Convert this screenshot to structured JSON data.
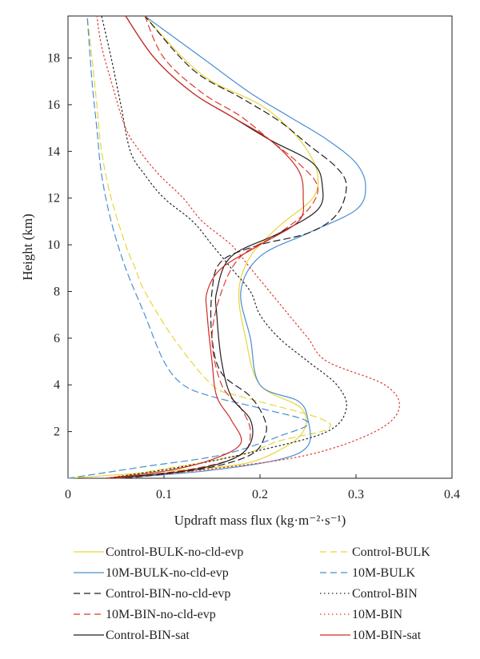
{
  "chart_data": {
    "type": "line",
    "orientation": "profile (x = flux, y = height)",
    "xlabel": "Updraft mass flux (kg·m⁻²·s⁻¹)",
    "ylabel": "Height (km)",
    "xlim": [
      0,
      0.4
    ],
    "ylim": [
      0,
      19.8
    ],
    "xticks": [
      "0",
      "0.1",
      "0.2",
      "0.3",
      "0.4"
    ],
    "yticks": [
      "2",
      "4",
      "6",
      "8",
      "10",
      "12",
      "14",
      "16",
      "18"
    ],
    "legend_position": "bottom",
    "grid": false,
    "series": [
      {
        "name": "Control-BULK-no-cld-evp",
        "color": "#e8d63a",
        "dash": "solid",
        "points": [
          [
            0,
            0
          ],
          [
            0.1,
            0.3
          ],
          [
            0.18,
            0.6
          ],
          [
            0.22,
            1.2
          ],
          [
            0.245,
            2
          ],
          [
            0.243,
            3
          ],
          [
            0.2,
            4
          ],
          [
            0.185,
            6
          ],
          [
            0.178,
            8
          ],
          [
            0.19,
            9.5
          ],
          [
            0.22,
            10.8
          ],
          [
            0.255,
            12
          ],
          [
            0.26,
            13
          ],
          [
            0.25,
            14
          ],
          [
            0.23,
            15
          ],
          [
            0.2,
            16
          ],
          [
            0.15,
            17
          ],
          [
            0.12,
            18
          ],
          [
            0.08,
            19.8
          ]
        ]
      },
      {
        "name": "Control-BULK",
        "color": "#e8d63a",
        "dash": "dashed",
        "points": [
          [
            0.04,
            0
          ],
          [
            0.1,
            0.4
          ],
          [
            0.18,
            1
          ],
          [
            0.22,
            1.6
          ],
          [
            0.27,
            2.1
          ],
          [
            0.26,
            2.6
          ],
          [
            0.18,
            3.5
          ],
          [
            0.15,
            4
          ],
          [
            0.11,
            6
          ],
          [
            0.08,
            8
          ],
          [
            0.07,
            9
          ],
          [
            0.06,
            10
          ],
          [
            0.045,
            12
          ],
          [
            0.035,
            14
          ],
          [
            0.03,
            16
          ],
          [
            0.025,
            18
          ],
          [
            0.02,
            19.8
          ]
        ]
      },
      {
        "name": "10M-BULK-no-cld-evp",
        "color": "#4a8ed2",
        "dash": "solid",
        "points": [
          [
            0.05,
            0
          ],
          [
            0.14,
            0.3
          ],
          [
            0.22,
            0.8
          ],
          [
            0.25,
            1.4
          ],
          [
            0.25,
            2.5
          ],
          [
            0.24,
            3.3
          ],
          [
            0.2,
            4
          ],
          [
            0.19,
            6
          ],
          [
            0.18,
            8
          ],
          [
            0.2,
            9.5
          ],
          [
            0.25,
            10.5
          ],
          [
            0.3,
            11.5
          ],
          [
            0.31,
            12.5
          ],
          [
            0.3,
            13.5
          ],
          [
            0.27,
            14.5
          ],
          [
            0.23,
            15.5
          ],
          [
            0.19,
            16.5
          ],
          [
            0.14,
            18
          ],
          [
            0.08,
            19.8
          ]
        ]
      },
      {
        "name": "10M-BULK",
        "color": "#4a8ed2",
        "dash": "dashed",
        "points": [
          [
            0,
            0
          ],
          [
            0.08,
            0.5
          ],
          [
            0.16,
            1
          ],
          [
            0.22,
            1.8
          ],
          [
            0.25,
            2.4
          ],
          [
            0.2,
            3
          ],
          [
            0.15,
            3.5
          ],
          [
            0.12,
            4
          ],
          [
            0.1,
            5
          ],
          [
            0.08,
            7
          ],
          [
            0.06,
            9
          ],
          [
            0.045,
            11
          ],
          [
            0.035,
            13
          ],
          [
            0.03,
            15
          ],
          [
            0.025,
            17
          ],
          [
            0.02,
            19.8
          ]
        ]
      },
      {
        "name": "Control-BIN-no-cld-evp",
        "color": "#231f20",
        "dash": "dashed",
        "points": [
          [
            0.06,
            0
          ],
          [
            0.14,
            0.4
          ],
          [
            0.19,
            1
          ],
          [
            0.205,
            1.8
          ],
          [
            0.205,
            2.5
          ],
          [
            0.19,
            3.5
          ],
          [
            0.16,
            4.5
          ],
          [
            0.15,
            6
          ],
          [
            0.15,
            8
          ],
          [
            0.16,
            9.3
          ],
          [
            0.2,
            10
          ],
          [
            0.25,
            10.5
          ],
          [
            0.28,
            11.3
          ],
          [
            0.29,
            12.5
          ],
          [
            0.28,
            13.3
          ],
          [
            0.25,
            14.3
          ],
          [
            0.22,
            15.3
          ],
          [
            0.18,
            16.3
          ],
          [
            0.13,
            17.5
          ],
          [
            0.08,
            19.8
          ]
        ]
      },
      {
        "name": "Control-BIN",
        "color": "#231f20",
        "dash": "dotted",
        "points": [
          [
            0.04,
            0
          ],
          [
            0.12,
            0.5
          ],
          [
            0.2,
            1.2
          ],
          [
            0.27,
            2
          ],
          [
            0.29,
            3
          ],
          [
            0.28,
            4
          ],
          [
            0.25,
            5
          ],
          [
            0.22,
            6
          ],
          [
            0.2,
            7
          ],
          [
            0.19,
            8
          ],
          [
            0.17,
            9
          ],
          [
            0.15,
            10
          ],
          [
            0.13,
            11
          ],
          [
            0.1,
            12
          ],
          [
            0.08,
            13
          ],
          [
            0.065,
            14
          ],
          [
            0.055,
            16
          ],
          [
            0.045,
            18
          ],
          [
            0.035,
            19.8
          ]
        ]
      },
      {
        "name": "10M-BIN-no-cld-evp",
        "color": "#e0392b",
        "dash": "dashed",
        "points": [
          [
            0.05,
            0
          ],
          [
            0.13,
            0.4
          ],
          [
            0.18,
            1
          ],
          [
            0.19,
            2
          ],
          [
            0.18,
            3
          ],
          [
            0.16,
            4
          ],
          [
            0.15,
            6
          ],
          [
            0.16,
            8
          ],
          [
            0.18,
            9.5
          ],
          [
            0.22,
            10.5
          ],
          [
            0.25,
            11.5
          ],
          [
            0.26,
            12.5
          ],
          [
            0.24,
            13.5
          ],
          [
            0.21,
            14.5
          ],
          [
            0.18,
            15.5
          ],
          [
            0.14,
            16.5
          ],
          [
            0.1,
            18
          ],
          [
            0.08,
            19.8
          ]
        ]
      },
      {
        "name": "10M-BIN",
        "color": "#e0392b",
        "dash": "dotted",
        "points": [
          [
            0.05,
            0
          ],
          [
            0.15,
            0.4
          ],
          [
            0.25,
            1
          ],
          [
            0.32,
            2
          ],
          [
            0.345,
            3
          ],
          [
            0.33,
            4
          ],
          [
            0.27,
            5
          ],
          [
            0.25,
            6
          ],
          [
            0.23,
            7
          ],
          [
            0.21,
            8
          ],
          [
            0.19,
            9
          ],
          [
            0.17,
            10
          ],
          [
            0.14,
            11
          ],
          [
            0.12,
            12
          ],
          [
            0.095,
            13
          ],
          [
            0.075,
            14
          ],
          [
            0.06,
            15
          ],
          [
            0.045,
            17
          ],
          [
            0.035,
            18.5
          ],
          [
            0.03,
            19.8
          ]
        ]
      },
      {
        "name": "Control-BIN-sat",
        "color": "#231f20",
        "dash": "solid",
        "points": [
          [
            0.04,
            0
          ],
          [
            0.12,
            0.3
          ],
          [
            0.17,
            0.8
          ],
          [
            0.19,
            1.5
          ],
          [
            0.19,
            2.5
          ],
          [
            0.17,
            3.5
          ],
          [
            0.16,
            5
          ],
          [
            0.155,
            7
          ],
          [
            0.155,
            8
          ],
          [
            0.17,
            9.5
          ],
          [
            0.22,
            10.5
          ],
          [
            0.26,
            11.5
          ],
          [
            0.265,
            12.5
          ],
          [
            0.255,
            13.5
          ],
          [
            0.21,
            14.5
          ],
          [
            0.17,
            15.5
          ],
          [
            0.13,
            16.5
          ],
          [
            0.09,
            18
          ],
          [
            0.06,
            19.8
          ]
        ]
      },
      {
        "name": "10M-BIN-sat",
        "color": "#d02b26",
        "dash": "solid",
        "points": [
          [
            0.04,
            0
          ],
          [
            0.1,
            0.3
          ],
          [
            0.15,
            0.8
          ],
          [
            0.18,
            1.5
          ],
          [
            0.17,
            2.5
          ],
          [
            0.155,
            3.5
          ],
          [
            0.15,
            5
          ],
          [
            0.145,
            7
          ],
          [
            0.145,
            8
          ],
          [
            0.16,
            9
          ],
          [
            0.2,
            10
          ],
          [
            0.24,
            11
          ],
          [
            0.245,
            12
          ],
          [
            0.24,
            13.2
          ],
          [
            0.21,
            14.5
          ],
          [
            0.17,
            15.5
          ],
          [
            0.13,
            16.5
          ],
          [
            0.09,
            18
          ],
          [
            0.06,
            19.8
          ]
        ]
      }
    ],
    "legend_layout": [
      [
        "Control-BULK-no-cld-evp",
        "Control-BULK"
      ],
      [
        "10M-BULK-no-cld-evp",
        "10M-BULK"
      ],
      [
        "Control-BIN-no-cld-evp",
        "Control-BIN"
      ],
      [
        "10M-BIN-no-cld-evp",
        "10M-BIN"
      ],
      [
        "Control-BIN-sat",
        "10M-BIN-sat"
      ]
    ]
  }
}
